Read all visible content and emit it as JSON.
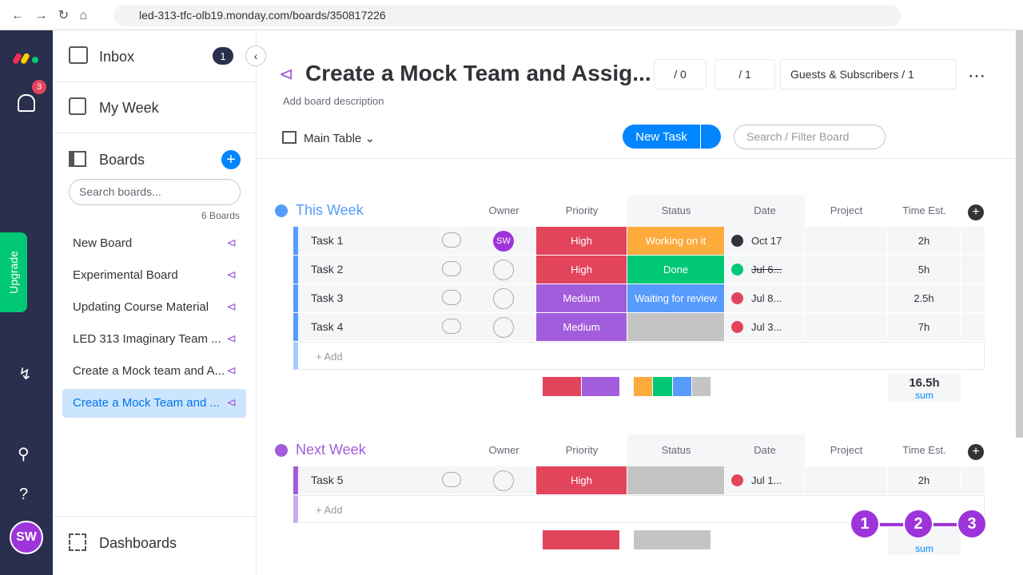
{
  "browser": {
    "url": "led-313-tfc-olb19.monday.com/boards/350817226"
  },
  "rail": {
    "notifications": "3",
    "upgrade": "Upgrade",
    "avatar": "SW"
  },
  "sidebar": {
    "inbox": "Inbox",
    "inbox_count": "1",
    "my_week": "My Week",
    "boards_title": "Boards",
    "search_placeholder": "Search boards...",
    "boards_count": "6 Boards",
    "boards": [
      "New Board",
      "Experimental Board",
      "Updating Course Material",
      "LED 313 Imaginary Team ...",
      "Create a Mock team and A...",
      "Create a Mock Team and ..."
    ],
    "dashboards": "Dashboards"
  },
  "header": {
    "title": "Create a Mock Team and Assig...",
    "activity": "/ 0",
    "automations": "/ 1",
    "guests": "Guests & Subscribers / 1",
    "description": "Add board description",
    "view": "Main Table",
    "new_task": "New Task",
    "search_placeholder": "Search / Filter Board"
  },
  "columns": [
    "Owner",
    "Priority",
    "Status",
    "Date",
    "Project",
    "Time Est."
  ],
  "groups": [
    {
      "title": "This Week",
      "color": "#579bfc",
      "add": "+ Add",
      "sum": "16.5h",
      "sum_label": "sum",
      "rows": [
        {
          "name": "Task 1",
          "owner": "SW",
          "priority": {
            "label": "High",
            "color": "#e2445c"
          },
          "status": {
            "label": "Working on it",
            "color": "#fdab3d"
          },
          "date": "Oct 17",
          "date_state": "clock",
          "time": "2h"
        },
        {
          "name": "Task 2",
          "priority": {
            "label": "High",
            "color": "#e2445c"
          },
          "status": {
            "label": "Done",
            "color": "#00c875"
          },
          "date": "Jul 6...",
          "date_state": "done",
          "time": "5h"
        },
        {
          "name": "Task 3",
          "priority": {
            "label": "Medium",
            "color": "#a25ddc"
          },
          "status": {
            "label": "Waiting for review",
            "color": "#579bfc"
          },
          "date": "Jul 8...",
          "date_state": "overdue",
          "time": "2.5h"
        },
        {
          "name": "Task 4",
          "priority": {
            "label": "Medium",
            "color": "#a25ddc"
          },
          "status": {
            "color": "#c4c4c4"
          },
          "date": "Jul 3...",
          "date_state": "overdue",
          "time": "7h"
        }
      ]
    },
    {
      "title": "Next Week",
      "color": "#a25ddc",
      "add": "+ Add",
      "sum_label": "sum",
      "rows": [
        {
          "name": "Task 5",
          "priority": {
            "label": "High",
            "color": "#e2445c"
          },
          "status": {
            "color": "#c4c4c4"
          },
          "date": "Jul 1...",
          "date_state": "overdue",
          "time": "2h"
        }
      ]
    }
  ],
  "stepper": [
    "1",
    "2",
    "3"
  ]
}
